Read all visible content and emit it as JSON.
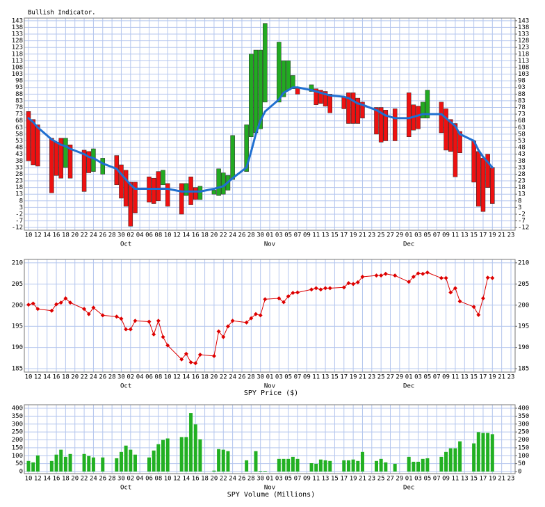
{
  "chart_data": [
    {
      "type": "candlestick",
      "title": "Bullish Indicator.",
      "categories": [
        "10",
        null,
        "12",
        null,
        "14",
        null,
        "16",
        null,
        "18",
        null,
        "20",
        null,
        "22",
        null,
        "24",
        null,
        "26",
        null,
        "28",
        null,
        "30",
        null,
        "02",
        null,
        "04",
        null,
        "06",
        null,
        "08",
        null,
        "10",
        null,
        "12",
        null,
        "14",
        null,
        "16",
        null,
        "18",
        null,
        "20",
        null,
        "22",
        null,
        "24",
        null,
        "26",
        null,
        "28",
        null,
        "30",
        null,
        "01",
        null,
        "03",
        null,
        "05",
        null,
        "07",
        null,
        "09",
        null,
        "11",
        null,
        "13",
        null,
        "15",
        null,
        "17",
        null,
        "19",
        null,
        "21",
        null,
        "23",
        null,
        "25",
        null,
        "27",
        null,
        "29",
        null,
        "01",
        null,
        "03",
        null,
        "05",
        null,
        "07",
        null,
        "09",
        null,
        "11",
        null,
        "13",
        null,
        "15",
        null,
        "17",
        null,
        "19",
        null,
        "21",
        null,
        "23"
      ],
      "months": [
        null,
        null,
        null,
        null,
        null,
        null,
        null,
        null,
        null,
        null,
        null,
        null,
        null,
        null,
        null,
        null,
        null,
        null,
        null,
        null,
        null,
        "Oct",
        null,
        null,
        null,
        null,
        null,
        null,
        null,
        null,
        null,
        null,
        null,
        null,
        null,
        null,
        null,
        null,
        null,
        null,
        null,
        null,
        null,
        null,
        null,
        null,
        null,
        null,
        null,
        null,
        null,
        null,
        "Nov",
        null,
        null,
        null,
        null,
        null,
        null,
        null,
        null,
        null,
        null,
        null,
        null,
        null,
        null,
        null,
        null,
        null,
        null,
        null,
        null,
        null,
        null,
        null,
        null,
        null,
        null,
        null,
        null,
        null,
        "Dec",
        null,
        null,
        null,
        null,
        null,
        null,
        null,
        null,
        null,
        null,
        null,
        null,
        null,
        null,
        null,
        null,
        null,
        null,
        null,
        null,
        null,
        null
      ],
      "open": [
        75,
        69,
        65,
        null,
        null,
        55,
        52,
        55,
        33,
        50,
        null,
        null,
        46,
        45,
        30,
        null,
        28,
        null,
        null,
        42,
        35,
        31,
        22,
        22,
        null,
        null,
        26,
        25,
        30,
        20,
        21,
        null,
        null,
        21,
        12,
        26,
        18,
        9,
        null,
        null,
        13,
        12,
        13,
        16,
        24,
        null,
        null,
        30,
        56,
        59,
        62,
        82,
        null,
        null,
        82,
        86,
        91,
        92,
        93,
        null,
        null,
        90,
        92,
        91,
        90,
        88,
        null,
        null,
        86,
        89,
        89,
        85,
        82,
        null,
        null,
        78,
        78,
        76,
        null,
        77,
        null,
        null,
        89,
        80,
        79,
        70,
        70,
        null,
        null,
        82,
        77,
        69,
        66,
        60,
        null,
        null,
        53,
        45,
        40,
        43,
        33,
        null,
        null,
        null,
        null
      ],
      "close": [
        38,
        35,
        34,
        null,
        null,
        14,
        27,
        25,
        55,
        25,
        null,
        null,
        15,
        29,
        47,
        null,
        40,
        null,
        null,
        20,
        10,
        4,
        -11,
        -1,
        null,
        null,
        7,
        6,
        8,
        31,
        4,
        null,
        null,
        -2,
        21,
        5,
        9,
        19,
        null,
        null,
        16,
        32,
        29,
        27,
        57,
        null,
        null,
        65,
        118,
        121,
        121,
        141,
        null,
        null,
        127,
        113,
        113,
        102,
        88,
        null,
        null,
        95,
        80,
        81,
        79,
        74,
        null,
        null,
        77,
        66,
        66,
        66,
        70,
        null,
        null,
        58,
        52,
        53,
        null,
        53,
        null,
        null,
        56,
        61,
        62,
        82,
        91,
        null,
        null,
        59,
        46,
        45,
        26,
        44,
        null,
        null,
        22,
        4,
        0,
        18,
        6,
        null,
        null,
        null,
        null
      ],
      "up_color": "#22aa22",
      "down_color": "#ee1111",
      "line": {
        "color": "#1f6fd0",
        "values": [
          70,
          67,
          63,
          null,
          null,
          54,
          52,
          50,
          49,
          47,
          null,
          null,
          43,
          41,
          40,
          null,
          36,
          null,
          null,
          32,
          28,
          24,
          20,
          17,
          null,
          null,
          17,
          17,
          17,
          17,
          17,
          null,
          null,
          15,
          15,
          15,
          15,
          15,
          null,
          null,
          17,
          18,
          19,
          22,
          25,
          null,
          null,
          33,
          45,
          58,
          68,
          75,
          null,
          null,
          84,
          89,
          91,
          93,
          93,
          null,
          null,
          91,
          90,
          89,
          88,
          87,
          null,
          null,
          86,
          85,
          83,
          81,
          80,
          null,
          null,
          76,
          74,
          72,
          null,
          70,
          null,
          null,
          70,
          71,
          72,
          73,
          73,
          null,
          null,
          73,
          70,
          67,
          64,
          58,
          null,
          null,
          53,
          46,
          41,
          37,
          33,
          null,
          null,
          null,
          null
        ]
      },
      "ylim": [
        -14,
        145
      ],
      "yticks": [
        143,
        138,
        133,
        128,
        123,
        118,
        113,
        108,
        103,
        98,
        93,
        88,
        83,
        78,
        73,
        68,
        63,
        58,
        53,
        48,
        43,
        38,
        33,
        28,
        23,
        18,
        13,
        8,
        3,
        -2,
        -7,
        -12
      ],
      "y2lim": [
        -14,
        145
      ],
      "y2ticks": [
        143,
        138,
        133,
        128,
        123,
        118,
        113,
        108,
        103,
        98,
        93,
        88,
        83,
        78,
        73,
        68,
        63,
        58,
        53,
        48,
        43,
        38,
        33,
        28,
        23,
        18,
        13,
        8,
        3,
        -2,
        -7,
        -12
      ],
      "grid": true
    },
    {
      "type": "line",
      "xlabel": "SPY Price ($)",
      "categories": [
        "10",
        null,
        "12",
        null,
        "14",
        null,
        "16",
        null,
        "18",
        null,
        "20",
        null,
        "22",
        null,
        "24",
        null,
        "26",
        null,
        "28",
        null,
        "30",
        null,
        "02",
        null,
        "04",
        null,
        "06",
        null,
        "08",
        null,
        "10",
        null,
        "12",
        null,
        "14",
        null,
        "16",
        null,
        "18",
        null,
        "20",
        null,
        "22",
        null,
        "24",
        null,
        "26",
        null,
        "28",
        null,
        "30",
        null,
        "01",
        null,
        "03",
        null,
        "05",
        null,
        "07",
        null,
        "09",
        null,
        "11",
        null,
        "13",
        null,
        "15",
        null,
        "17",
        null,
        "19",
        null,
        "21",
        null,
        "23",
        null,
        "25",
        null,
        "27",
        null,
        "29",
        null,
        "01",
        null,
        "03",
        null,
        "05",
        null,
        "07",
        null,
        "09",
        null,
        "11",
        null,
        "13",
        null,
        "15",
        null,
        "17",
        null,
        "19",
        null,
        "21",
        null,
        "23"
      ],
      "months": [
        null,
        null,
        null,
        null,
        null,
        null,
        null,
        null,
        null,
        null,
        null,
        null,
        null,
        null,
        null,
        null,
        null,
        null,
        null,
        null,
        null,
        "Oct",
        null,
        null,
        null,
        null,
        null,
        null,
        null,
        null,
        null,
        null,
        null,
        null,
        null,
        null,
        null,
        null,
        null,
        null,
        null,
        null,
        null,
        null,
        null,
        null,
        null,
        null,
        null,
        null,
        null,
        null,
        "Nov",
        null,
        null,
        null,
        null,
        null,
        null,
        null,
        null,
        null,
        null,
        null,
        null,
        null,
        null,
        null,
        null,
        null,
        null,
        null,
        null,
        null,
        null,
        null,
        null,
        null,
        null,
        null,
        null,
        null,
        "Dec",
        null,
        null,
        null,
        null,
        null,
        null,
        null,
        null,
        null,
        null,
        null,
        null,
        null,
        null,
        null,
        null,
        null,
        null,
        null,
        null,
        null,
        null
      ],
      "series": [
        {
          "color": "#dd0000",
          "values": [
            200.1,
            200.4,
            199.1,
            null,
            null,
            198.7,
            200.2,
            200.6,
            201.6,
            200.6,
            null,
            null,
            199.1,
            197.9,
            199.4,
            null,
            197.6,
            null,
            null,
            197.3,
            196.8,
            194.3,
            194.3,
            196.3,
            null,
            null,
            196.1,
            193.1,
            196.3,
            192.5,
            190.5,
            null,
            null,
            187.2,
            188.5,
            186.5,
            186.3,
            188.3,
            null,
            null,
            188.0,
            193.8,
            192.5,
            195.0,
            196.3,
            null,
            null,
            195.9,
            196.9,
            197.9,
            197.6,
            201.4,
            null,
            null,
            201.6,
            200.7,
            202.1,
            202.9,
            203.0,
            null,
            null,
            203.7,
            204.0,
            203.7,
            204.0,
            204.0,
            null,
            null,
            204.2,
            205.2,
            205.0,
            205.4,
            206.7,
            null,
            null,
            207.0,
            207.0,
            207.4,
            null,
            207.0,
            null,
            null,
            205.5,
            206.7,
            207.5,
            207.4,
            207.7,
            null,
            null,
            206.4,
            206.4,
            203.0,
            204.0,
            200.9,
            null,
            null,
            199.6,
            197.7,
            201.6,
            206.5,
            206.4,
            null,
            null,
            null,
            null
          ]
        }
      ],
      "ylim": [
        184.2,
        210.8
      ],
      "yticks": [
        210,
        205,
        200,
        195,
        190,
        185
      ],
      "y2lim": [
        184.2,
        210.8
      ],
      "y2ticks": [
        210,
        205,
        200,
        195,
        190,
        185
      ],
      "grid": true
    },
    {
      "type": "bar",
      "xlabel": "SPY Volume (Millions)",
      "categories": [
        "10",
        null,
        "12",
        null,
        "14",
        null,
        "16",
        null,
        "18",
        null,
        "20",
        null,
        "22",
        null,
        "24",
        null,
        "26",
        null,
        "28",
        null,
        "30",
        null,
        "02",
        null,
        "04",
        null,
        "06",
        null,
        "08",
        null,
        "10",
        null,
        "12",
        null,
        "14",
        null,
        "16",
        null,
        "18",
        null,
        "20",
        null,
        "22",
        null,
        "24",
        null,
        "26",
        null,
        "28",
        null,
        "30",
        null,
        "01",
        null,
        "03",
        null,
        "05",
        null,
        "07",
        null,
        "09",
        null,
        "11",
        null,
        "13",
        null,
        "15",
        null,
        "17",
        null,
        "19",
        null,
        "21",
        null,
        "23",
        null,
        "25",
        null,
        "27",
        null,
        "29",
        null,
        "01",
        null,
        "03",
        null,
        "05",
        null,
        "07",
        null,
        "09",
        null,
        "11",
        null,
        "13",
        null,
        "15",
        null,
        "17",
        null,
        "19",
        null,
        "21",
        null,
        "23"
      ],
      "months": [
        null,
        null,
        null,
        null,
        null,
        null,
        null,
        null,
        null,
        null,
        null,
        null,
        null,
        null,
        null,
        null,
        null,
        null,
        null,
        null,
        null,
        "Oct",
        null,
        null,
        null,
        null,
        null,
        null,
        null,
        null,
        null,
        null,
        null,
        null,
        null,
        null,
        null,
        null,
        null,
        null,
        null,
        null,
        null,
        null,
        null,
        null,
        null,
        null,
        null,
        null,
        null,
        null,
        "Nov",
        null,
        null,
        null,
        null,
        null,
        null,
        null,
        null,
        null,
        null,
        null,
        null,
        null,
        null,
        null,
        null,
        null,
        null,
        null,
        null,
        null,
        null,
        null,
        null,
        null,
        null,
        null,
        null,
        null,
        "Dec",
        null,
        null,
        null,
        null,
        null,
        null,
        null,
        null,
        null,
        null,
        null,
        null,
        null,
        null,
        null,
        null,
        null,
        null,
        null,
        null,
        null,
        null
      ],
      "color": "#22b022",
      "values": [
        67,
        58,
        102,
        null,
        null,
        67,
        107,
        138,
        93,
        111,
        null,
        null,
        111,
        98,
        89,
        null,
        89,
        null,
        null,
        84,
        124,
        164,
        138,
        107,
        null,
        null,
        89,
        133,
        173,
        200,
        209,
        null,
        null,
        218,
        218,
        369,
        298,
        204,
        null,
        null,
        6,
        142,
        138,
        129,
        null,
        null,
        null,
        71,
        null,
        129,
        4,
        4,
        null,
        null,
        80,
        80,
        80,
        93,
        80,
        null,
        null,
        53,
        49,
        76,
        71,
        67,
        null,
        null,
        71,
        71,
        76,
        67,
        124,
        null,
        null,
        67,
        80,
        58,
        null,
        49,
        null,
        null,
        93,
        62,
        62,
        80,
        84,
        null,
        null,
        93,
        124,
        147,
        147,
        191,
        null,
        null,
        178,
        249,
        244,
        244,
        236,
        null,
        null,
        null,
        null
      ],
      "ylim": [
        -13,
        422
      ],
      "yticks": [
        400,
        350,
        300,
        250,
        200,
        150,
        100,
        50,
        0
      ],
      "y2lim": [
        -13,
        422
      ],
      "y2ticks": [
        400,
        350,
        300,
        250,
        200,
        150,
        100,
        50,
        0
      ],
      "grid": true
    }
  ]
}
